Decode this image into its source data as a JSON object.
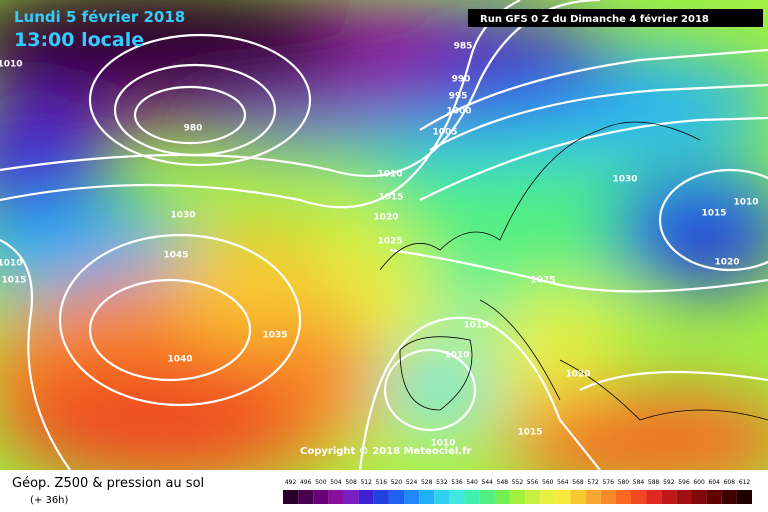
{
  "header": {
    "date": "Lundi 5 février 2018",
    "time": "13:00 locale",
    "run": "Run GFS 0 Z du Dimanche 4 février 2018"
  },
  "isobar_labels": [
    1010,
    985,
    990,
    995,
    1000,
    980,
    1005,
    1010,
    1015,
    1020,
    1030,
    1025,
    1030,
    1015,
    1010,
    1045,
    1020,
    1025,
    1010,
    1015,
    1035,
    1015,
    1040,
    1010,
    1020,
    1015,
    1010
  ],
  "copyright": "Copyright © 2018 Meteociel.fr",
  "footer": {
    "title": "Géop. Z500 & pression au sol",
    "lead": "(+ 36h)"
  },
  "legend": {
    "levels": [
      492,
      496,
      500,
      504,
      508,
      512,
      516,
      520,
      524,
      528,
      532,
      536,
      540,
      544,
      548,
      552,
      556,
      560,
      564,
      568,
      572,
      576,
      580,
      584,
      588,
      592,
      596,
      600,
      604,
      608,
      612
    ],
    "colors": [
      "#2a002a",
      "#4a0050",
      "#6a0078",
      "#8a10a0",
      "#7a20c0",
      "#4020d0",
      "#2040e0",
      "#2060f0",
      "#2088f8",
      "#20b0f8",
      "#30d0f0",
      "#40e8e0",
      "#40f0b0",
      "#50f080",
      "#70f050",
      "#a0f040",
      "#c8f040",
      "#e8f040",
      "#f8e840",
      "#f8c830",
      "#f8a830",
      "#f88828",
      "#f86820",
      "#f04820",
      "#e02820",
      "#c01818",
      "#a01010",
      "#800808",
      "#600000",
      "#400000",
      "#200000"
    ]
  }
}
